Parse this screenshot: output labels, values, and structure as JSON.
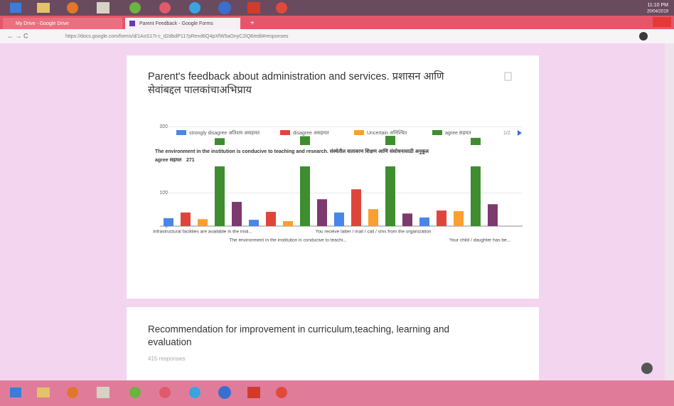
{
  "browser": {
    "tabs": [
      "My Drive - Google Drive",
      "Parent Feedback - Google Forms"
    ],
    "url": "https://docs.google.com/forms/d/1AoS17t-c_d2dbdP117pRevd6Q4pXfW5aOnyC2iQ8/edit#responses",
    "clock_time": "11:10 PM",
    "clock_date": "20/04/2019"
  },
  "question_1": {
    "title_line1": "Parent's feedback about administration and services. प्रशासन आणि",
    "title_line2": "सेवांबद्दल पालकांचाअभिप्राय",
    "chart_data": {
      "type": "bar",
      "categories": [
        "Infrastructural facilities are available in the insti...",
        "The environment in the institution is conducive to teachi...",
        "You receive latter / mail / call / sms from the organization",
        "Your child / daughter has be..."
      ],
      "series": [
        {
          "name": "strongly disagree अतिशय असहमत",
          "color": "#4a86e8",
          "values": [
            24,
            19,
            41,
            26
          ]
        },
        {
          "name": "disagree असहमत",
          "color": "#e0453b",
          "values": [
            41,
            43,
            111,
            47
          ]
        },
        {
          "name": "Uncertain अनिश्चित",
          "color": "#f9a030",
          "values": [
            21,
            15,
            51,
            45
          ]
        },
        {
          "name": "agree सहमत",
          "color": "#3e8e2f",
          "values": [
            265,
            271,
            272,
            266
          ]
        },
        {
          "name": null,
          "color": "#7d3a6e",
          "values": [
            73,
            81,
            38,
            66
          ]
        }
      ],
      "ylim": [
        0,
        300
      ],
      "yticks": [
        0,
        100,
        200,
        300
      ],
      "grid": true,
      "legend_page": "1/2",
      "tooltip": {
        "text": "The environment in the institution is conducive to teaching and research. संस्थेतील वातावरण शिक्षण आणि संशोधनासाठी अनुकूल"
      }
    }
  },
  "question_2": {
    "title_line1": "Recommendation for improvement in curriculum,teaching, learning and",
    "title_line2": "evaluation",
    "responses": "415 responses"
  }
}
